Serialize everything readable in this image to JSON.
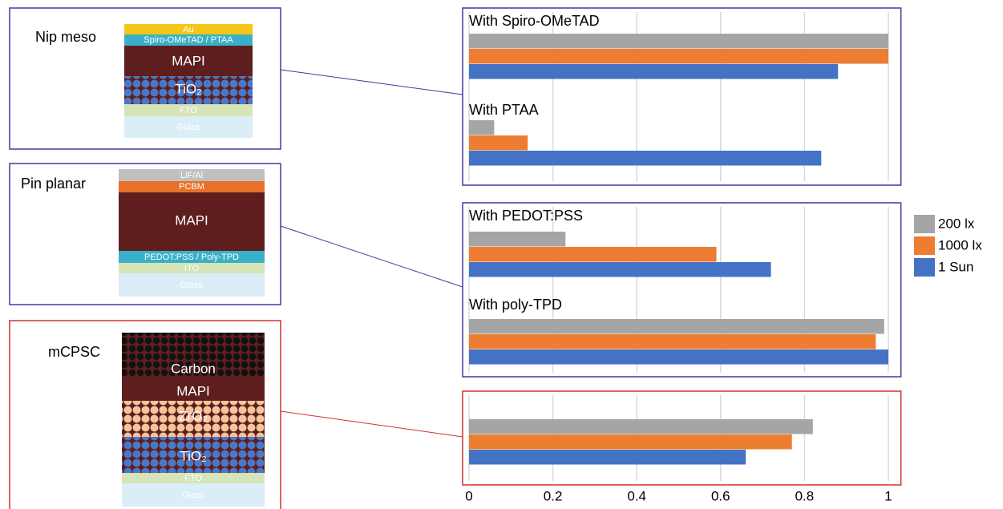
{
  "devices": [
    {
      "name": "Nip meso",
      "layers": [
        "Au",
        "Spiro-OMeTAD / PTAA",
        "MAPI",
        "TiO₂",
        "FTO",
        "Glass"
      ]
    },
    {
      "name": "Pin planar",
      "layers": [
        "LiF/Al",
        "PCBM",
        "MAPI",
        "PEDOT:PSS / Poly-TPD",
        "ITO",
        "Glass"
      ]
    },
    {
      "name": "mCPSC",
      "layers": [
        "Carbon",
        "MAPI",
        "ZrO₂",
        "TiO₂",
        "FTO",
        "Glass"
      ]
    }
  ],
  "legend": [
    {
      "name": "200 lx",
      "color": "#a5a5a5"
    },
    {
      "name": "1000 lx",
      "color": "#ed7d31"
    },
    {
      "name": "1 Sun",
      "color": "#4472c4"
    }
  ],
  "chart_data": [
    {
      "type": "bar",
      "orientation": "horizontal",
      "groups": [
        "With Spiro-OMeTAD",
        "With PTAA"
      ],
      "series": [
        {
          "values": [
            1.0,
            0.06
          ]
        },
        {
          "values": [
            1.0,
            0.14
          ]
        },
        {
          "values": [
            0.88,
            0.84
          ]
        }
      ],
      "xlim": [
        0,
        1.03
      ],
      "xticks": [
        0,
        0.2,
        0.4,
        0.6,
        0.8,
        1
      ],
      "grid": true,
      "border": "#3c3ca0"
    },
    {
      "type": "bar",
      "orientation": "horizontal",
      "groups": [
        "With PEDOT:PSS",
        "With poly-TPD"
      ],
      "series": [
        {
          "values": [
            0.23,
            0.99
          ]
        },
        {
          "values": [
            0.59,
            0.97
          ]
        },
        {
          "values": [
            0.72,
            1.0
          ]
        }
      ],
      "xlim": [
        0,
        1.03
      ],
      "xticks": [
        0,
        0.2,
        0.4,
        0.6,
        0.8,
        1
      ],
      "grid": true,
      "border": "#3c3ca0"
    },
    {
      "type": "bar",
      "orientation": "horizontal",
      "groups": [
        null
      ],
      "series": [
        {
          "values": [
            0.82
          ]
        },
        {
          "values": [
            0.77
          ]
        },
        {
          "values": [
            0.66
          ]
        }
      ],
      "xlim": [
        0,
        1.03
      ],
      "xticks": [
        0,
        0.2,
        0.4,
        0.6,
        0.8,
        1
      ],
      "grid": true,
      "border": "#d03030"
    }
  ]
}
